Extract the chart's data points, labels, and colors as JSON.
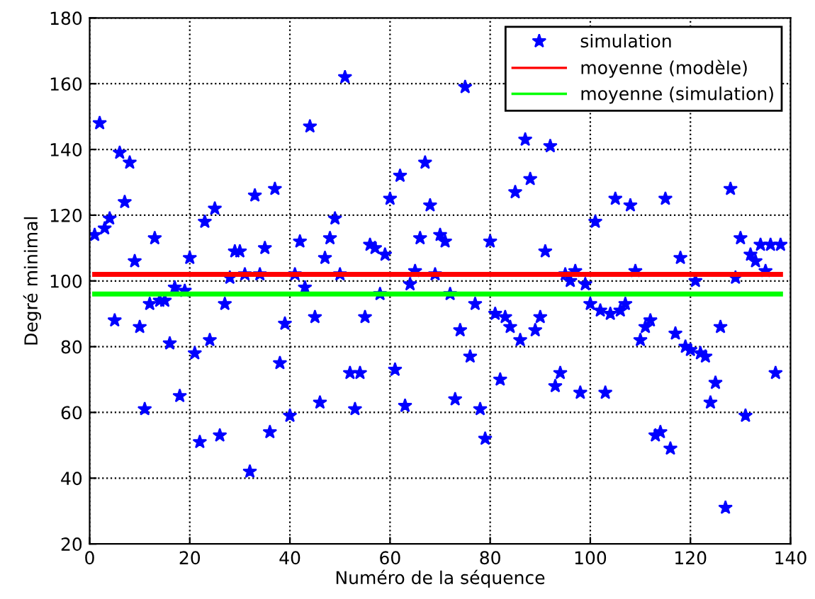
{
  "chart_data": {
    "type": "scatter",
    "xlabel": "Numéro de la séquence",
    "ylabel": "Degré minimal",
    "xlim": [
      0,
      140
    ],
    "xticks": [
      0,
      20,
      40,
      60,
      80,
      100,
      120,
      140
    ],
    "ylim": [
      20,
      180
    ],
    "yticks": [
      20,
      40,
      60,
      80,
      100,
      120,
      140,
      160,
      180
    ],
    "grid": true,
    "legend": "top right",
    "series": [
      {
        "name": "simulation",
        "marker": "star",
        "color": "#0000ff",
        "x": [
          1,
          2,
          3,
          4,
          5,
          6,
          7,
          8,
          9,
          10,
          11,
          12,
          13,
          14,
          15,
          16,
          17,
          18,
          19,
          20,
          21,
          22,
          23,
          24,
          25,
          26,
          27,
          28,
          29,
          30,
          31,
          32,
          33,
          34,
          35,
          36,
          37,
          38,
          39,
          40,
          41,
          42,
          43,
          44,
          45,
          46,
          47,
          48,
          49,
          50,
          51,
          52,
          53,
          54,
          55,
          56,
          57,
          58,
          59,
          60,
          61,
          62,
          63,
          64,
          65,
          66,
          67,
          68,
          69,
          70,
          71,
          72,
          73,
          74,
          75,
          76,
          77,
          78,
          79,
          80,
          81,
          82,
          83,
          84,
          85,
          86,
          87,
          88,
          89,
          90,
          91,
          92,
          93,
          94,
          95,
          96,
          97,
          98,
          99,
          100,
          101,
          102,
          103,
          104,
          105,
          106,
          107,
          108,
          109,
          110,
          111,
          112,
          113,
          114,
          115,
          116,
          117,
          118,
          119,
          120,
          121,
          122,
          123,
          124,
          125,
          126,
          127,
          128,
          129,
          130,
          131,
          132,
          133,
          134,
          135,
          136,
          137,
          138
        ],
        "values": [
          114,
          148,
          116,
          119,
          88,
          139,
          124,
          136,
          106,
          86,
          61,
          93,
          113,
          94,
          94,
          81,
          98,
          65,
          97,
          107,
          78,
          51,
          118,
          82,
          122,
          53,
          93,
          101,
          109,
          109,
          102,
          42,
          126,
          102,
          110,
          54,
          128,
          75,
          87,
          59,
          102,
          112,
          98,
          147,
          89,
          63,
          107,
          113,
          119,
          102,
          162,
          72,
          61,
          72,
          89,
          111,
          110,
          96,
          108,
          125,
          73,
          132,
          62,
          99,
          103,
          113,
          136,
          123,
          102,
          114,
          112,
          96,
          64,
          85,
          159,
          77,
          93,
          61,
          52,
          112,
          90,
          70,
          89,
          86,
          127,
          82,
          143,
          131,
          85,
          89,
          109,
          141,
          68,
          72,
          102,
          100,
          103,
          66,
          99,
          93,
          118,
          91,
          66,
          90,
          125,
          91,
          93,
          123,
          103,
          82,
          86,
          88,
          53,
          54,
          125,
          49,
          84,
          107,
          80,
          79,
          100,
          78,
          77,
          63,
          69,
          86,
          31,
          128,
          101,
          113,
          59,
          108,
          106,
          111,
          103,
          111,
          72,
          111
        ]
      },
      {
        "name": "moyenne (modèle)",
        "type": "line",
        "line_style": "solid",
        "color": "#ff0000",
        "x": [
          1,
          138
        ],
        "values": [
          102,
          102
        ]
      },
      {
        "name": "moyenne (simulation)",
        "type": "line",
        "line_style": "solid",
        "color": "#00ff00",
        "x": [
          1,
          138
        ],
        "values": [
          96,
          96
        ]
      }
    ]
  }
}
